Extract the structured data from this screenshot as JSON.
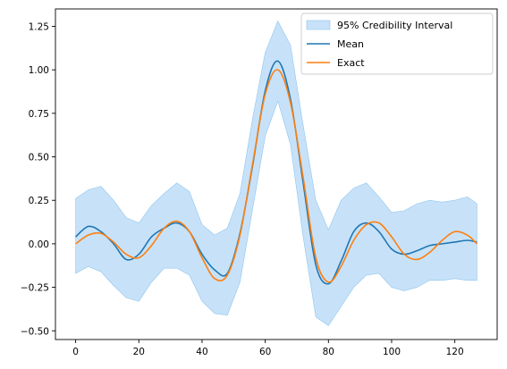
{
  "chart_data": {
    "type": "line",
    "title": "",
    "xlabel": "",
    "ylabel": "",
    "xlim": [
      -6.4,
      133.4
    ],
    "ylim": [
      -0.55,
      1.35
    ],
    "xticks": [
      0,
      20,
      40,
      60,
      80,
      100,
      120
    ],
    "yticks": [
      -0.5,
      -0.25,
      0.0,
      0.25,
      0.5,
      0.75,
      1.0,
      1.25
    ],
    "ytick_labels": [
      "−0.50",
      "−0.25",
      "0.00",
      "0.25",
      "0.50",
      "0.75",
      "1.00",
      "1.25"
    ],
    "grid": false,
    "legend_position": "top-right",
    "legend": [
      "95% Credibility Interval",
      "Mean",
      "Exact"
    ],
    "colors": {
      "band": "#a9d3f5",
      "band_edge": "#8fc4ef",
      "mean": "#1f77b4",
      "exact": "#ff7f0e"
    },
    "x": [
      0,
      4,
      8,
      12,
      16,
      20,
      24,
      28,
      32,
      36,
      40,
      44,
      48,
      52,
      56,
      60,
      64,
      68,
      72,
      76,
      80,
      84,
      88,
      92,
      96,
      100,
      104,
      108,
      112,
      116,
      120,
      124,
      127
    ],
    "series": [
      {
        "name": "Mean",
        "values": [
          0.04,
          0.1,
          0.07,
          0.0,
          -0.09,
          -0.06,
          0.04,
          0.09,
          0.12,
          0.07,
          -0.06,
          -0.15,
          -0.17,
          0.06,
          0.45,
          0.88,
          1.05,
          0.83,
          0.35,
          -0.12,
          -0.23,
          -0.1,
          0.07,
          0.12,
          0.07,
          -0.03,
          -0.06,
          -0.04,
          -0.01,
          0.0,
          0.01,
          0.02,
          0.01
        ]
      },
      {
        "name": "Exact",
        "values": [
          0.0,
          0.05,
          0.06,
          0.01,
          -0.06,
          -0.08,
          -0.01,
          0.09,
          0.13,
          0.07,
          -0.08,
          -0.2,
          -0.18,
          0.05,
          0.46,
          0.86,
          1.0,
          0.81,
          0.38,
          -0.08,
          -0.22,
          -0.13,
          0.02,
          0.11,
          0.12,
          0.04,
          -0.06,
          -0.09,
          -0.05,
          0.02,
          0.07,
          0.05,
          0.0
        ]
      }
    ],
    "band": {
      "name": "95% Credibility Interval",
      "upper": [
        0.26,
        0.31,
        0.33,
        0.25,
        0.15,
        0.12,
        0.22,
        0.29,
        0.35,
        0.3,
        0.11,
        0.05,
        0.09,
        0.29,
        0.72,
        1.1,
        1.28,
        1.14,
        0.68,
        0.25,
        0.08,
        0.25,
        0.32,
        0.35,
        0.27,
        0.18,
        0.19,
        0.23,
        0.25,
        0.24,
        0.25,
        0.27,
        0.23
      ],
      "lower": [
        -0.17,
        -0.13,
        -0.16,
        -0.24,
        -0.31,
        -0.33,
        -0.22,
        -0.14,
        -0.14,
        -0.18,
        -0.33,
        -0.4,
        -0.41,
        -0.22,
        0.2,
        0.62,
        0.82,
        0.57,
        0.04,
        -0.42,
        -0.47,
        -0.36,
        -0.25,
        -0.18,
        -0.17,
        -0.25,
        -0.27,
        -0.25,
        -0.21,
        -0.21,
        -0.2,
        -0.21,
        -0.21
      ]
    }
  }
}
